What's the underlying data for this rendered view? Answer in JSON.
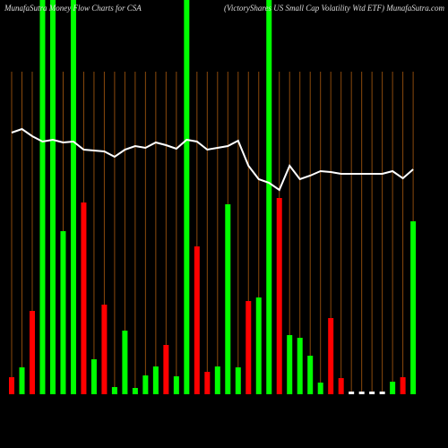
{
  "chart_data": {
    "type": "bar",
    "title": "MunafaSutra Money Flow Charts for CSA",
    "subtitle": "(VictoryShares US Small Cap Volatility Wtd ETF) MunafaSutra.com",
    "ylim": [
      0,
      440
    ],
    "values": [
      19,
      30,
      93,
      440,
      440,
      182,
      440,
      214,
      39,
      100,
      8,
      71,
      7,
      21,
      31,
      55,
      20,
      440,
      165,
      25,
      31,
      212,
      30,
      104,
      108,
      440,
      219,
      66,
      63,
      43,
      13,
      85,
      18,
      3,
      3,
      3,
      3,
      14,
      19,
      193
    ],
    "colors": [
      "#ff0000",
      "#00ff00",
      "#ff0000",
      "#00ff00",
      "#00ff00",
      "#00ff00",
      "#00ff00",
      "#ff0000",
      "#00ff00",
      "#ff0000",
      "#00ff00",
      "#00ff00",
      "#00ff00",
      "#00ff00",
      "#00ff00",
      "#ff0000",
      "#00ff00",
      "#00ff00",
      "#ff0000",
      "#ff0000",
      "#00ff00",
      "#00ff00",
      "#00ff00",
      "#ff0000",
      "#00ff00",
      "#00ff00",
      "#ff0000",
      "#00ff00",
      "#00ff00",
      "#00ff00",
      "#00ff00",
      "#ff0000",
      "#ff0000",
      "#ffffff",
      "#ffffff",
      "#ffffff",
      "#ffffff",
      "#00ff00",
      "#ff0000",
      "#00ff00"
    ],
    "line": {
      "color": "#ffffff",
      "values": [
        292,
        296,
        288,
        282,
        284,
        281,
        282,
        273,
        272,
        271,
        265,
        273,
        277,
        275,
        281,
        278,
        274,
        284,
        282,
        273,
        275,
        277,
        283,
        255,
        240,
        236,
        228,
        255,
        240,
        244,
        249,
        248,
        246,
        246,
        246,
        246,
        246,
        249,
        241,
        251
      ]
    },
    "category_line_color": "#8b4a0c"
  }
}
